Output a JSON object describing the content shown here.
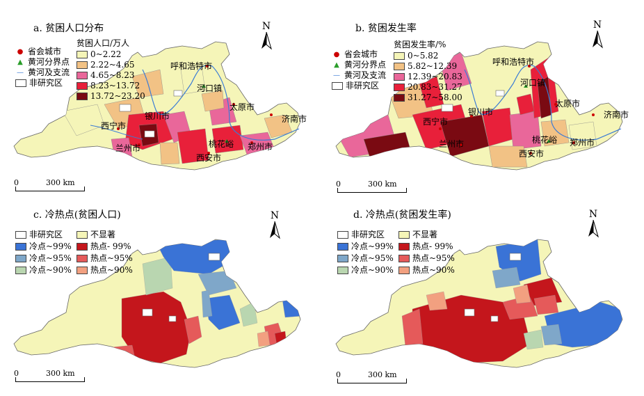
{
  "panels": [
    {
      "title": "a. 贫困人口分布",
      "legend_title": "贫困人口/万人",
      "layers": [
        "省会城市",
        "黄河分界点",
        "黄河及支流",
        "非研究区"
      ],
      "classes": [
        "0~2.22",
        "2.22~4.65",
        "4.65~8.23",
        "8.23~13.72",
        "13.72~23.20"
      ],
      "class_colors": [
        "#f5f5b8",
        "#f2c285",
        "#e9679a",
        "#e8203a",
        "#7a0a12"
      ],
      "cities": [
        "呼和浩特市",
        "河口镇",
        "太原市",
        "济南市",
        "银川市",
        "西宁市",
        "兰州市",
        "桃花峪",
        "西安市",
        "郑州市"
      ],
      "north": "N",
      "scale": {
        "zero": "0",
        "label": "300 km"
      }
    },
    {
      "title": "b. 贫困发生率",
      "legend_title": "贫困发生率/%",
      "layers": [
        "省会城市",
        "黄河分界点",
        "黄河及支流",
        "非研究区"
      ],
      "classes": [
        "0~5.82",
        "5.82~12.39",
        "12.39~20.83",
        "20.83~31.27",
        "31.27~58.00"
      ],
      "class_colors": [
        "#f5f5b8",
        "#f2c285",
        "#e9679a",
        "#e8203a",
        "#7a0a12"
      ],
      "cities": [
        "呼和浩特市",
        "河口镇",
        "太原市",
        "济南市",
        "银川市",
        "西宁市",
        "兰州市",
        "桃花峪",
        "西安市",
        "郑州市"
      ],
      "north": "N",
      "scale": {
        "zero": "0",
        "label": "300 km"
      }
    },
    {
      "title": "c. 冷热点(贫困人口)",
      "legend": [
        {
          "label": "非研究区",
          "color": "#ffffff"
        },
        {
          "label": "不显著",
          "color": "#f5f5b8"
        },
        {
          "label": "冷点~99%",
          "color": "#3a73d6"
        },
        {
          "label": "热点- 99%",
          "color": "#c4161c"
        },
        {
          "label": "冷点~95%",
          "color": "#7fa7c9"
        },
        {
          "label": "热点~95%",
          "color": "#e55a5a"
        },
        {
          "label": "冷点~90%",
          "color": "#b9d6b0"
        },
        {
          "label": "热点~90%",
          "color": "#f2a080"
        }
      ],
      "north": "N",
      "scale": {
        "zero": "0",
        "label": "300 km"
      }
    },
    {
      "title": "d. 冷热点(贫困发生率)",
      "legend": [
        {
          "label": "非研究区",
          "color": "#ffffff"
        },
        {
          "label": "不显著",
          "color": "#f5f5b8"
        },
        {
          "label": "冷点~99%",
          "color": "#3a73d6"
        },
        {
          "label": "热点- 99%",
          "color": "#c4161c"
        },
        {
          "label": "冷点~95%",
          "color": "#7fa7c9"
        },
        {
          "label": "热点~95%",
          "color": "#e55a5a"
        },
        {
          "label": "冷点~90%",
          "color": "#b9d6b0"
        },
        {
          "label": "热点~90%",
          "color": "#f2a080"
        }
      ],
      "north": "N",
      "scale": {
        "zero": "0",
        "label": "300 km"
      }
    }
  ]
}
